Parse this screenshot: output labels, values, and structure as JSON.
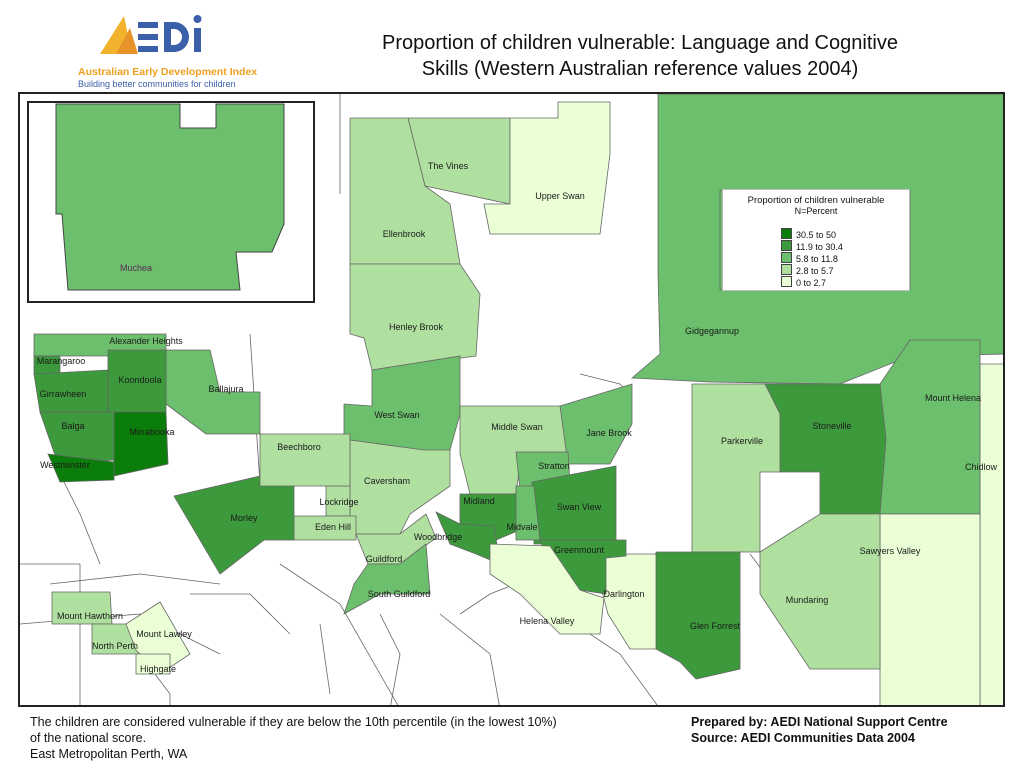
{
  "logo": {
    "wordmark": "AEDI",
    "name": "Australian Early Development Index",
    "tagline": "Building better communities for children"
  },
  "title": {
    "line1": "Proportion of children vulnerable: Language and Cognitive",
    "line2": "Skills (Western Australian reference values 2004)"
  },
  "legend": {
    "title": "Proportion of children vulnerable",
    "subtitle": "N=Percent",
    "classes": [
      {
        "label": "30.5 to 50",
        "color": "#0b7d0b"
      },
      {
        "label": "11.9 to 30.4",
        "color": "#3c9a3c"
      },
      {
        "label": "5.8 to 11.8",
        "color": "#6cbf6c"
      },
      {
        "label": "2.8 to  5.7",
        "color": "#b0e0a0"
      },
      {
        "label": "0    to   2.7",
        "color": "#eaffd6"
      }
    ]
  },
  "map": {
    "inset_suburb": "Muchea",
    "suburbs": [
      "The Vines",
      "Upper Swan",
      "Ellenbrook",
      "Henley Brook",
      "Alexander Heights",
      "Marangaroo",
      "Koondoola",
      "Girrawheen",
      "Ballajura",
      "Balga",
      "Mirrabooka",
      "Westminster",
      "Beechboro",
      "West Swan",
      "Middle Swan",
      "Jane Brook",
      "Gidgegannup",
      "Mount Helena",
      "Stoneville",
      "Parkerville",
      "Chidlow",
      "Caversham",
      "Stratton",
      "Lockridge",
      "Midland",
      "Swan View",
      "Morley",
      "Eden Hill",
      "Woodbridge",
      "Midvale",
      "Greenmount",
      "Guildford",
      "South Guildford",
      "Darlington",
      "Helena Valley",
      "Sawyers Valley",
      "Mundaring",
      "Glen Forrest",
      "Mount Hawthorn",
      "Mount Lawley",
      "North Perth",
      "Highgate"
    ]
  },
  "footnote": {
    "line1": "The children are considered vulnerable if they are below the 10th percentile (in the lowest 10%)",
    "line2": "of the national score.",
    "line3": "East Metropolitan Perth, WA"
  },
  "credits": {
    "prepared": "Prepared by: AEDI National Support Centre",
    "source": "Source: AEDI Communities Data 2004"
  }
}
